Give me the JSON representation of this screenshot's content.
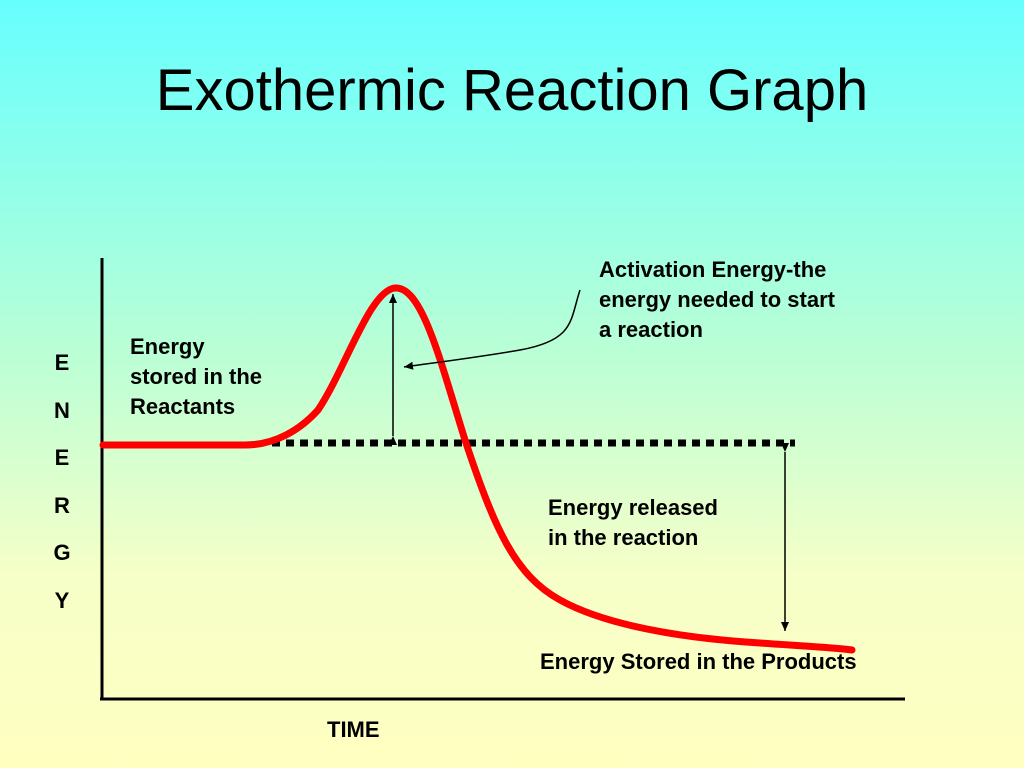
{
  "title": "Exothermic Reaction Graph",
  "axes": {
    "y_label_letters": [
      "E",
      "N",
      "E",
      "R",
      "G",
      "Y"
    ],
    "x_label": "TIME"
  },
  "annotations": {
    "reactants_line1": "Energy",
    "reactants_line2": "stored in the",
    "reactants_line3": "Reactants",
    "activation_line1": "Activation Energy-the",
    "activation_line2": "energy needed to start",
    "activation_line3": "a reaction",
    "released_line1": "Energy released",
    "released_line2": "in the reaction",
    "products": "Energy Stored in the Products"
  },
  "colors": {
    "curve": "#ff0000",
    "axes": "#000000",
    "reactant_level_line": "#000000"
  }
}
